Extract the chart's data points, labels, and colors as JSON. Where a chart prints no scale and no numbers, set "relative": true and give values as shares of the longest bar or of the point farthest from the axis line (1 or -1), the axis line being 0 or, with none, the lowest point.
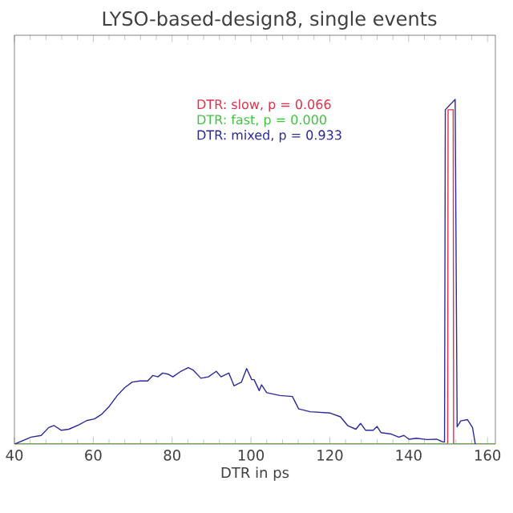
{
  "chart_data": {
    "type": "line",
    "title": "LYSO-based-design8, single events",
    "xlabel": "DTR in ps",
    "relative": true,
    "xlim": [
      40,
      162
    ],
    "xticks": [
      40,
      60,
      80,
      100,
      120,
      140,
      160
    ],
    "legend": "top",
    "marker": "none",
    "line_style": "solid",
    "series": [
      {
        "name": "DTR: slow, p = 0.066",
        "color": "#e0304a",
        "x": [
          40,
          149.9,
          150.0,
          151.3,
          151.4,
          162
        ],
        "values": [
          0,
          0,
          0.97,
          0.97,
          0,
          0
        ]
      },
      {
        "name": "DTR: fast, p = 0.000",
        "color": "#3ec43e",
        "x": [
          40,
          100,
          162
        ],
        "values": [
          0,
          0,
          0
        ]
      },
      {
        "name": "DTR: mixed, p = 0.933",
        "color": "#2a2a9c",
        "x": [
          40.1,
          44.2,
          46.8,
          48.7,
          50.0,
          51.9,
          53.8,
          56.4,
          58.3,
          60.3,
          62.2,
          64.1,
          66.1,
          68.0,
          69.9,
          71.9,
          73.8,
          75.1,
          76.4,
          77.6,
          78.9,
          80.2,
          82.2,
          84.1,
          85.4,
          87.3,
          89.2,
          91.2,
          92.4,
          94.4,
          95.7,
          97.6,
          98.9,
          100.2,
          100.8,
          102.1,
          102.7,
          104.0,
          107.3,
          110.5,
          112.1,
          115.0,
          120.1,
          122.7,
          124.6,
          126.6,
          127.8,
          129.1,
          131.0,
          132.0,
          133.0,
          135.6,
          137.5,
          138.8,
          140.1,
          142.0,
          144.6,
          147.1,
          148.7,
          149.1,
          149.3,
          151.8,
          152.3,
          153.2,
          154.9,
          156.2,
          156.9
        ],
        "values": [
          0,
          0.02,
          0.025,
          0.048,
          0.054,
          0.04,
          0.043,
          0.056,
          0.068,
          0.073,
          0.087,
          0.11,
          0.141,
          0.164,
          0.18,
          0.183,
          0.183,
          0.199,
          0.195,
          0.206,
          0.203,
          0.195,
          0.211,
          0.222,
          0.214,
          0.191,
          0.195,
          0.211,
          0.195,
          0.206,
          0.169,
          0.18,
          0.219,
          0.187,
          0.187,
          0.155,
          0.172,
          0.149,
          0.141,
          0.138,
          0.102,
          0.094,
          0.09,
          0.079,
          0.053,
          0.043,
          0.06,
          0.04,
          0.04,
          0.051,
          0.033,
          0.029,
          0.02,
          0.025,
          0.014,
          0.017,
          0.013,
          0.014,
          0.006,
          0.006,
          0.97,
          1,
          0.05,
          0.067,
          0.071,
          0.048,
          0
        ]
      }
    ]
  }
}
